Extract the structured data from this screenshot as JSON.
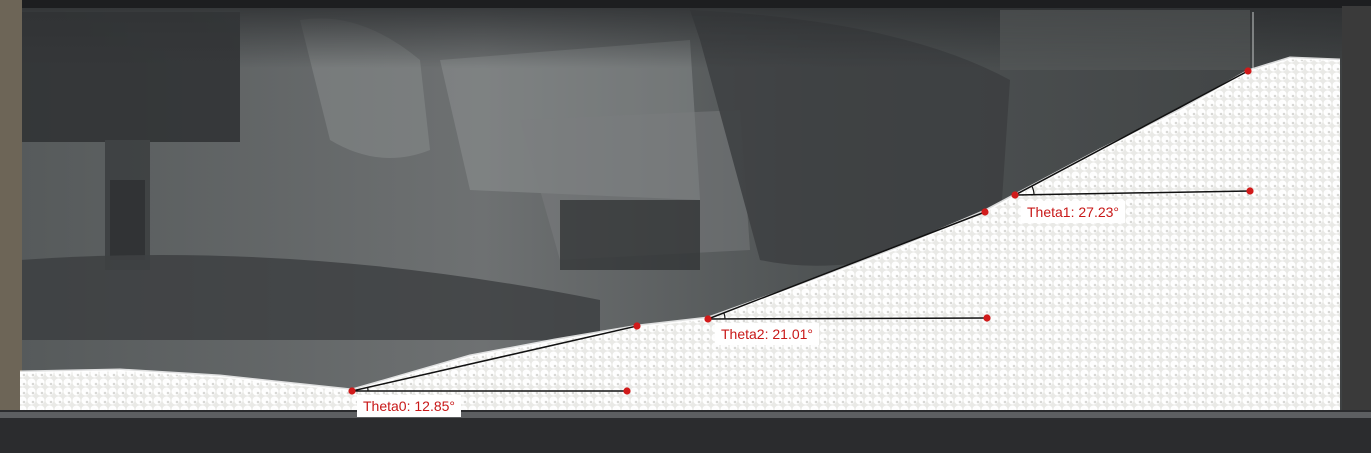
{
  "annotations": {
    "point_color": "#d11a1a",
    "line_color": "#111111",
    "label_text_color": "#c81818",
    "label_background": "#ffffff",
    "labels": {
      "theta0": "Theta0: 12.85°",
      "theta1": "Theta1: 27.23°",
      "theta2": "Theta2: 21.01°"
    }
  },
  "scene": {
    "subject": "granular bead pile in a glass tank",
    "bead_color": "#f4f4f2",
    "background_color": "#5d6163"
  }
}
